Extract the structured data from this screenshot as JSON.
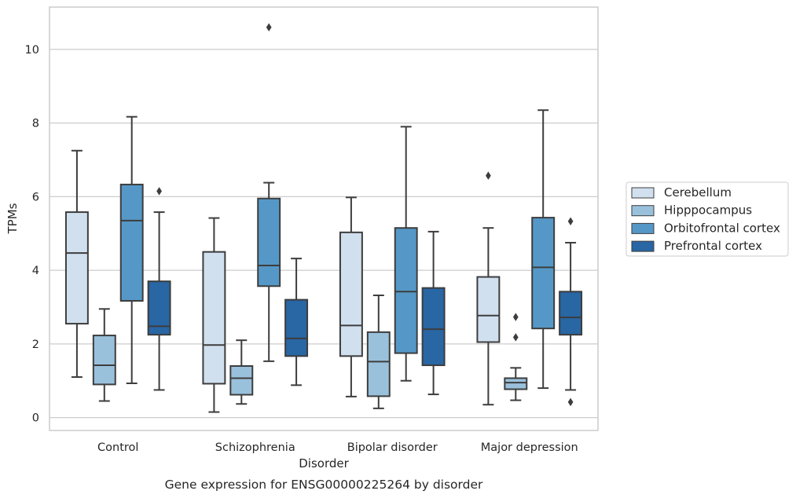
{
  "chart_data": {
    "type": "box",
    "caption": "Gene expression for ENSG00000225264 by disorder",
    "xlabel": "Disorder",
    "ylabel": "TPMs",
    "ylim": [
      -0.35,
      11.15
    ],
    "yticks": [
      0,
      2,
      4,
      6,
      8,
      10
    ],
    "grid": "horizontal",
    "legend_position": "right",
    "categories": [
      "Control",
      "Schizophrenia",
      "Bipolar disorder",
      "Major depression"
    ],
    "series": [
      {
        "name": "Cerebellum",
        "color": "#d1e0ef",
        "boxes": [
          {
            "whisker_low": 1.1,
            "q1": 2.55,
            "median": 4.47,
            "q3": 5.58,
            "whisker_high": 7.25,
            "outliers": []
          },
          {
            "whisker_low": 0.15,
            "q1": 0.92,
            "median": 1.97,
            "q3": 4.5,
            "whisker_high": 5.42,
            "outliers": []
          },
          {
            "whisker_low": 0.57,
            "q1": 1.67,
            "median": 2.5,
            "q3": 5.03,
            "whisker_high": 5.98,
            "outliers": []
          },
          {
            "whisker_low": 0.35,
            "q1": 2.05,
            "median": 2.77,
            "q3": 3.82,
            "whisker_high": 5.15,
            "outliers": [
              6.57
            ]
          }
        ]
      },
      {
        "name": "Hipppocampus",
        "color": "#9ac1dc",
        "boxes": [
          {
            "whisker_low": 0.45,
            "q1": 0.9,
            "median": 1.42,
            "q3": 2.23,
            "whisker_high": 2.95,
            "outliers": []
          },
          {
            "whisker_low": 0.37,
            "q1": 0.62,
            "median": 1.07,
            "q3": 1.4,
            "whisker_high": 2.1,
            "outliers": []
          },
          {
            "whisker_low": 0.25,
            "q1": 0.58,
            "median": 1.52,
            "q3": 2.32,
            "whisker_high": 3.32,
            "outliers": []
          },
          {
            "whisker_low": 0.47,
            "q1": 0.77,
            "median": 0.95,
            "q3": 1.07,
            "whisker_high": 1.35,
            "outliers": [
              2.18,
              2.73
            ]
          }
        ]
      },
      {
        "name": "Orbitofrontal cortex",
        "color": "#5598c8",
        "boxes": [
          {
            "whisker_low": 0.93,
            "q1": 3.17,
            "median": 5.35,
            "q3": 6.33,
            "whisker_high": 8.17,
            "outliers": []
          },
          {
            "whisker_low": 1.53,
            "q1": 3.57,
            "median": 4.13,
            "q3": 5.95,
            "whisker_high": 6.38,
            "outliers": [
              10.6
            ]
          },
          {
            "whisker_low": 1.0,
            "q1": 1.75,
            "median": 3.42,
            "q3": 5.15,
            "whisker_high": 7.9,
            "outliers": []
          },
          {
            "whisker_low": 0.8,
            "q1": 2.42,
            "median": 4.08,
            "q3": 5.43,
            "whisker_high": 8.35,
            "outliers": []
          }
        ]
      },
      {
        "name": "Prefrontal cortex",
        "color": "#2866a4",
        "boxes": [
          {
            "whisker_low": 0.75,
            "q1": 2.25,
            "median": 2.48,
            "q3": 3.7,
            "whisker_high": 5.58,
            "outliers": [
              6.15
            ]
          },
          {
            "whisker_low": 0.88,
            "q1": 1.67,
            "median": 2.15,
            "q3": 3.2,
            "whisker_high": 4.32,
            "outliers": []
          },
          {
            "whisker_low": 0.63,
            "q1": 1.42,
            "median": 2.4,
            "q3": 3.52,
            "whisker_high": 5.05,
            "outliers": []
          },
          {
            "whisker_low": 0.75,
            "q1": 2.25,
            "median": 2.72,
            "q3": 3.42,
            "whisker_high": 4.75,
            "outliers": [
              0.42,
              5.33
            ]
          }
        ]
      }
    ]
  }
}
